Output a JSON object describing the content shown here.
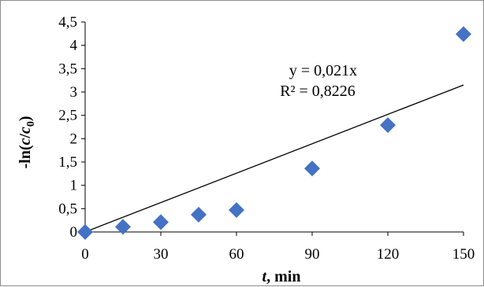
{
  "chart_data": {
    "type": "scatter",
    "title": "",
    "xlabel": {
      "italic": "t",
      "rest": ", min"
    },
    "ylabel": {
      "pre": "-ln(",
      "c": "c",
      "slash": "/",
      "c0": "c",
      "sub": "0",
      "post": ")"
    },
    "x": [
      0,
      15,
      30,
      45,
      60,
      90,
      120,
      150
    ],
    "y": [
      0.0,
      0.11,
      0.21,
      0.37,
      0.47,
      1.36,
      2.29,
      4.24
    ],
    "xlim": [
      0,
      150
    ],
    "ylim": [
      0,
      4.5
    ],
    "xticks": [
      0,
      30,
      60,
      90,
      120,
      150
    ],
    "xtick_labels": [
      "0",
      "30",
      "60",
      "90",
      "120",
      "150"
    ],
    "yticks": [
      0,
      0.5,
      1,
      1.5,
      2,
      2.5,
      3,
      3.5,
      4,
      4.5
    ],
    "ytick_labels": [
      "0",
      "0,5",
      "1",
      "1,5",
      "2",
      "2,5",
      "3",
      "3,5",
      "4",
      "4,5"
    ],
    "trendline": {
      "slope": 0.021,
      "intercept": 0,
      "equation": "y = 0,021x",
      "r2": "R² = 0,8226"
    },
    "marker_color": "#4472c4",
    "line_color": "#000000",
    "grid": false,
    "legend": "none"
  }
}
